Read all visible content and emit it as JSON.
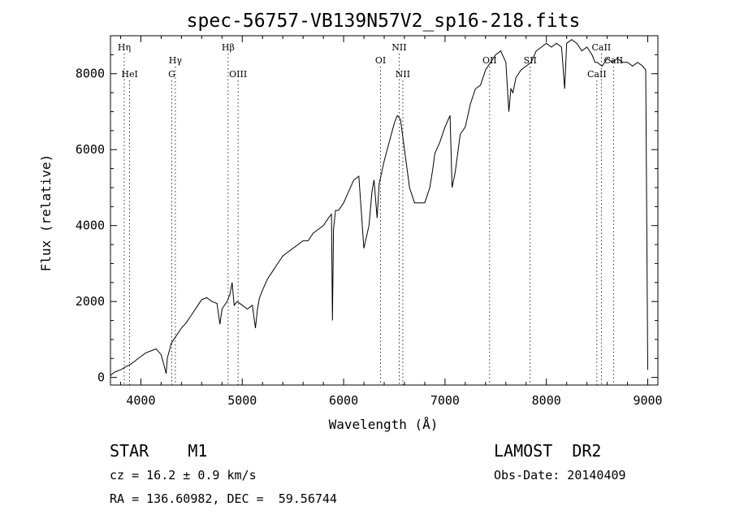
{
  "chart_data": {
    "type": "line",
    "title": "spec-56757-VB139N57V2_sp16-218.fits",
    "xlabel": "Wavelength (Å)",
    "ylabel": "Flux (relative)",
    "xlim": [
      3700,
      9100
    ],
    "ylim": [
      -200,
      9000
    ],
    "x_ticks": [
      4000,
      5000,
      6000,
      7000,
      8000,
      9000
    ],
    "x_tick_labels": [
      "4000",
      "5000",
      "6000",
      "7000",
      "8000",
      "9000"
    ],
    "y_ticks": [
      0,
      2000,
      4000,
      6000,
      8000
    ],
    "y_tick_labels": [
      "0",
      "2000",
      "4000",
      "6000",
      "8000"
    ],
    "grid": false,
    "series": [
      {
        "x": [
          3700,
          3720,
          3750,
          3780,
          3800,
          3850,
          3900,
          3950,
          4000,
          4050,
          4100,
          4150,
          4200,
          4230,
          4250,
          4260,
          4280,
          4300,
          4350,
          4400,
          4450,
          4500,
          4550,
          4600,
          4650,
          4700,
          4750,
          4780,
          4800,
          4850,
          4880,
          4900,
          4920,
          4950,
          5000,
          5050,
          5100,
          5130,
          5150,
          5170,
          5200,
          5250,
          5300,
          5350,
          5400,
          5450,
          5500,
          5550,
          5600,
          5650,
          5700,
          5750,
          5800,
          5850,
          5880,
          5890,
          5900,
          5920,
          5950,
          6000,
          6050,
          6100,
          6150,
          6200,
          6250,
          6280,
          6300,
          6330,
          6350,
          6400,
          6450,
          6500,
          6530,
          6560,
          6580,
          6600,
          6650,
          6700,
          6750,
          6800,
          6850,
          6880,
          6900,
          6950,
          7000,
          7050,
          7070,
          7100,
          7150,
          7200,
          7250,
          7300,
          7350,
          7400,
          7450,
          7500,
          7550,
          7600,
          7630,
          7650,
          7670,
          7700,
          7750,
          7800,
          7850,
          7900,
          7950,
          8000,
          8050,
          8100,
          8150,
          8180,
          8200,
          8250,
          8300,
          8350,
          8400,
          8450,
          8480,
          8500,
          8550,
          8600,
          8650,
          8700,
          8750,
          8800,
          8850,
          8900,
          8950,
          8980,
          8990,
          9000
        ],
        "y": [
          50,
          100,
          150,
          180,
          200,
          280,
          350,
          450,
          550,
          650,
          700,
          750,
          600,
          300,
          100,
          500,
          700,
          900,
          1100,
          1300,
          1450,
          1650,
          1850,
          2050,
          2100,
          2000,
          1950,
          1400,
          1800,
          2000,
          2200,
          2500,
          1900,
          2000,
          1900,
          1800,
          1900,
          1300,
          1800,
          2100,
          2300,
          2600,
          2800,
          3000,
          3200,
          3300,
          3400,
          3500,
          3600,
          3600,
          3800,
          3900,
          4000,
          4200,
          4300,
          1500,
          3900,
          4400,
          4400,
          4600,
          4900,
          5200,
          5300,
          3400,
          4000,
          4900,
          5200,
          4200,
          5100,
          5700,
          6200,
          6700,
          6900,
          6800,
          6400,
          6000,
          5000,
          4600,
          4600,
          4600,
          5000,
          5500,
          5900,
          6200,
          6600,
          6900,
          5000,
          5400,
          6400,
          6600,
          7200,
          7600,
          7700,
          8100,
          8300,
          8500,
          8600,
          8300,
          7000,
          7600,
          7500,
          7900,
          8100,
          8200,
          8300,
          8600,
          8700,
          8800,
          8700,
          8800,
          8700,
          7600,
          8800,
          8900,
          8800,
          8600,
          8700,
          8500,
          8300,
          8300,
          8200,
          8400,
          8300,
          8400,
          8300,
          8300,
          8200,
          8300,
          8200,
          8100,
          4000,
          200
        ]
      }
    ],
    "line_markers": [
      {
        "label": "Hη",
        "x": 3836,
        "row": 1
      },
      {
        "label": "HeI",
        "x": 3889,
        "row": 3
      },
      {
        "label": "Hγ",
        "x": 4340,
        "row": 2
      },
      {
        "label": "G",
        "x": 4305,
        "row": 3
      },
      {
        "label": "Hβ",
        "x": 4861,
        "row": 1
      },
      {
        "label": "OIII",
        "x": 4959,
        "row": 3
      },
      {
        "label": "OI",
        "x": 6364,
        "row": 2
      },
      {
        "label": "NII",
        "x": 6548,
        "row": 1
      },
      {
        "label": "NII",
        "x": 6584,
        "row": 3
      },
      {
        "label": "OII",
        "x": 7440,
        "row": 2
      },
      {
        "label": "SII",
        "x": 7840,
        "row": 2
      },
      {
        "label": "CaII",
        "x": 8542,
        "row": 1
      },
      {
        "label": "CaII",
        "x": 8662,
        "row": 2
      },
      {
        "label": "CaII",
        "x": 8498,
        "row": 3
      }
    ]
  },
  "info": {
    "object_type": "STAR    M1",
    "survey": "LAMOST  DR2",
    "cz": "cz = 16.2 ± 0.9 km/s",
    "obs_date": "Obs-Date: 20140409",
    "coords": "RA = 136.60982, DEC =  59.56744"
  }
}
